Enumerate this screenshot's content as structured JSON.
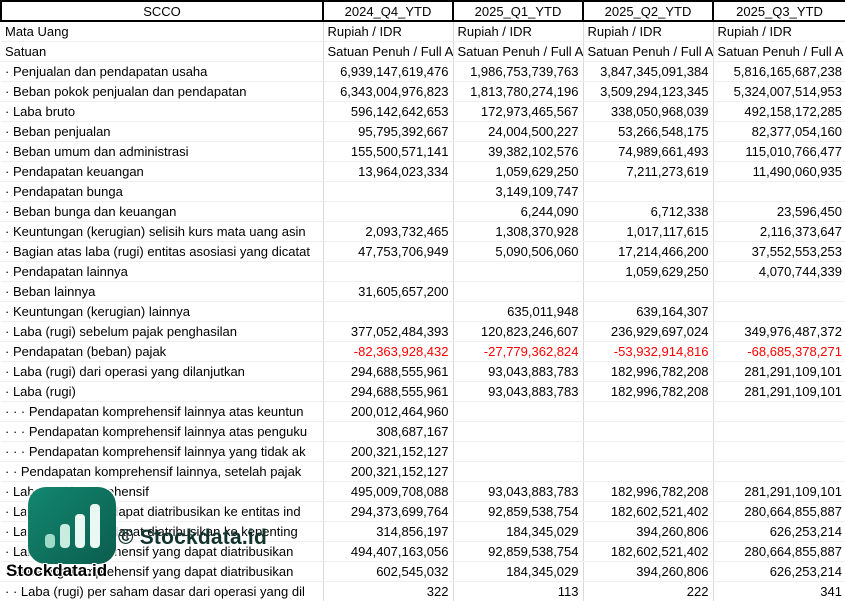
{
  "table": {
    "columns": [
      "SCCO",
      "2024_Q4_YTD",
      "2025_Q1_YTD",
      "2025_Q2_YTD",
      "2025_Q3_YTD"
    ],
    "rows": [
      {
        "type": "text",
        "label": "Mata Uang",
        "values": [
          "Rupiah / IDR",
          "Rupiah / IDR",
          "Rupiah / IDR",
          "Rupiah / IDR"
        ]
      },
      {
        "type": "text",
        "label": "Satuan",
        "values": [
          "Satuan Penuh / Full A",
          "Satuan Penuh / Full A",
          "Satuan Penuh / Full A",
          "Satuan Penuh / Full A"
        ]
      },
      {
        "type": "num",
        "label": "· Penjualan dan pendapatan usaha",
        "values": [
          "6,939,147,619,476",
          "1,986,753,739,763",
          "3,847,345,091,384",
          "5,816,165,687,238"
        ]
      },
      {
        "type": "num",
        "label": "· Beban pokok penjualan dan pendapatan",
        "values": [
          "6,343,004,976,823",
          "1,813,780,274,196",
          "3,509,294,123,345",
          "5,324,007,514,953"
        ]
      },
      {
        "type": "num",
        "label": "· Laba bruto",
        "values": [
          "596,142,642,653",
          "172,973,465,567",
          "338,050,968,039",
          "492,158,172,285"
        ]
      },
      {
        "type": "num",
        "label": "· Beban penjualan",
        "values": [
          "95,795,392,667",
          "24,004,500,227",
          "53,266,548,175",
          "82,377,054,160"
        ]
      },
      {
        "type": "num",
        "label": "· Beban umum dan administrasi",
        "values": [
          "155,500,571,141",
          "39,382,102,576",
          "74,989,661,493",
          "115,010,766,477"
        ]
      },
      {
        "type": "num",
        "label": "· Pendapatan keuangan",
        "values": [
          "13,964,023,334",
          "1,059,629,250",
          "7,211,273,619",
          "11,490,060,935"
        ]
      },
      {
        "type": "num",
        "label": "· Pendapatan bunga",
        "values": [
          "",
          "3,149,109,747",
          "",
          ""
        ]
      },
      {
        "type": "num",
        "label": "· Beban bunga dan keuangan",
        "values": [
          "",
          "6,244,090",
          "6,712,338",
          "23,596,450"
        ]
      },
      {
        "type": "num",
        "label": "· Keuntungan (kerugian) selisih kurs mata uang asin",
        "values": [
          "2,093,732,465",
          "1,308,370,928",
          "1,017,117,615",
          "2,116,373,647"
        ]
      },
      {
        "type": "num",
        "label": "· Bagian atas laba (rugi) entitas asosiasi yang dicatat",
        "values": [
          "47,753,706,949",
          "5,090,506,060",
          "17,214,466,200",
          "37,552,553,253"
        ]
      },
      {
        "type": "num",
        "label": "· Pendapatan lainnya",
        "values": [
          "",
          "",
          "1,059,629,250",
          "4,070,744,339"
        ]
      },
      {
        "type": "num",
        "label": "· Beban lainnya",
        "values": [
          "31,605,657,200",
          "",
          "",
          ""
        ]
      },
      {
        "type": "num",
        "label": "· Keuntungan (kerugian) lainnya",
        "values": [
          "",
          "635,011,948",
          "639,164,307",
          ""
        ]
      },
      {
        "type": "num",
        "label": "· Laba (rugi) sebelum pajak penghasilan",
        "values": [
          "377,052,484,393",
          "120,823,246,607",
          "236,929,697,024",
          "349,976,487,372"
        ]
      },
      {
        "type": "num",
        "negative": true,
        "label": "· Pendapatan (beban) pajak",
        "values": [
          "-82,363,928,432",
          "-27,779,362,824",
          "-53,932,914,816",
          "-68,685,378,271"
        ]
      },
      {
        "type": "num",
        "label": "· Laba (rugi) dari operasi yang dilanjutkan",
        "values": [
          "294,688,555,961",
          "93,043,883,783",
          "182,996,782,208",
          "281,291,109,101"
        ]
      },
      {
        "type": "num",
        "label": "· Laba (rugi)",
        "values": [
          "294,688,555,961",
          "93,043,883,783",
          "182,996,782,208",
          "281,291,109,101"
        ]
      },
      {
        "type": "num",
        "label": "· · · Pendapatan komprehensif lainnya atas keuntun",
        "values": [
          "200,012,464,960",
          "",
          "",
          ""
        ]
      },
      {
        "type": "num",
        "label": "· · · Pendapatan komprehensif lainnya atas penguku",
        "values": [
          "308,687,167",
          "",
          "",
          ""
        ]
      },
      {
        "type": "num",
        "label": "· · · Pendapatan komprehensif lainnya yang tidak ak",
        "values": [
          "200,321,152,127",
          "",
          "",
          ""
        ]
      },
      {
        "type": "num",
        "label": "· · Pendapatan komprehensif lainnya, setelah pajak",
        "values": [
          "200,321,152,127",
          "",
          "",
          ""
        ]
      },
      {
        "type": "num",
        "label": "· Laba rugi komprehensif",
        "values": [
          "495,009,708,088",
          "93,043,883,783",
          "182,996,782,208",
          "281,291,109,101"
        ]
      },
      {
        "type": "num",
        "label": "· Laba (rugi) yang dapat diatribusikan ke entitas ind",
        "values": [
          "294,373,699,764",
          "92,859,538,754",
          "182,602,521,402",
          "280,664,855,887"
        ]
      },
      {
        "type": "num",
        "label": "· Laba (rugi) yang dapat diatribusikan ke kepenting",
        "values": [
          "314,856,197",
          "184,345,029",
          "394,260,806",
          "626,253,214"
        ]
      },
      {
        "type": "num",
        "label": "· Laba rugi komprehensif yang dapat diatribusikan",
        "values": [
          "494,407,163,056",
          "92,859,538,754",
          "182,602,521,402",
          "280,664,855,887"
        ]
      },
      {
        "type": "num",
        "label": "· Laba rugi komprehensif yang dapat diatribusikan",
        "values": [
          "602,545,032",
          "184,345,029",
          "394,260,806",
          "626,253,214"
        ]
      },
      {
        "type": "num",
        "label": "· · Laba (rugi) per saham dasar dari operasi yang dil",
        "values": [
          "322",
          "113",
          "222",
          "341"
        ]
      }
    ]
  },
  "watermark": {
    "copyright_text": "© Stockdata.id",
    "brand_text": "Stockdata.id"
  },
  "colors": {
    "negative_value": "#ff0000",
    "logo_teal": "#12876f",
    "logo_teal_dark": "#0b5d4e",
    "header_border": "#000000",
    "grid_line": "#d9d9d9"
  }
}
